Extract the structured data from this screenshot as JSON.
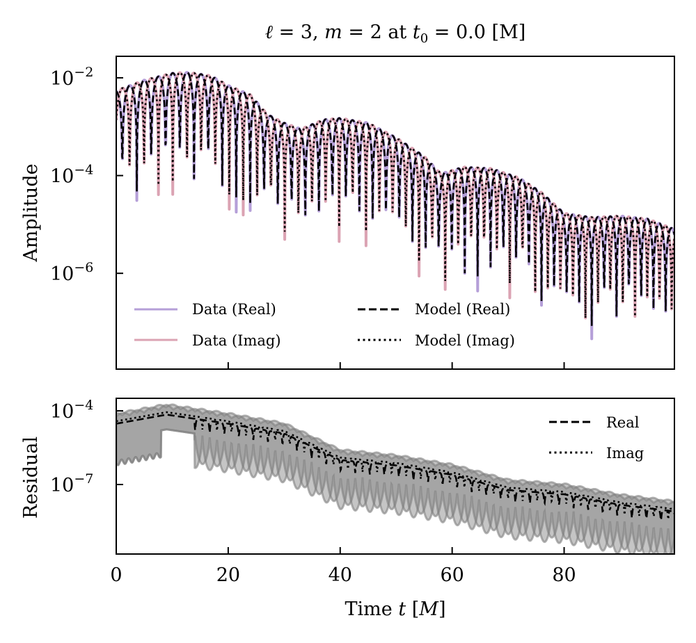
{
  "chart_data": [
    {
      "panel": "top",
      "type": "line",
      "title": "ℓ = 3, m = 2 at t₀ = 0.0 [M]",
      "title_parts": {
        "l": "3",
        "m": "2",
        "t0": "0.0",
        "unit": "[M]"
      },
      "xlabel": "",
      "ylabel": "Amplitude",
      "yscale": "log",
      "xlim": [
        0,
        99.7
      ],
      "ylim_log10": [
        -7.96,
        -1.56
      ],
      "yticks": [
        {
          "exp": "−2",
          "value": 0.01
        },
        {
          "exp": "−4",
          "value": 0.0001
        },
        {
          "exp": "−6",
          "value": 1e-06
        }
      ],
      "xticks": [
        0,
        20,
        40,
        60,
        80
      ],
      "xticklabels_visible": false,
      "legend": {
        "placement": "lower-left",
        "columns": 2,
        "entries": [
          {
            "label": "Data (Real)",
            "style": "solid",
            "color": "#b59fd8"
          },
          {
            "label": "Data (Imag)",
            "style": "solid",
            "color": "#dba3b3"
          },
          {
            "label": "Model (Real)",
            "style": "dashed",
            "color": "#000000"
          },
          {
            "label": "Model (Imag)",
            "style": "dotted",
            "color": "#000000"
          }
        ]
      },
      "series_description": "|Re h| and |Im h| of an oscillating ringdown signal; envelope ~1e-2 peaking near t≈13, shoulder near t≈22-30 at ~1e-3, second hump ~1.5e-3 near t≈38, decaying to ~1.5e-4 at t≈60 and ~1.5e-5 at t≈90; deep zero-crossing notches every ~2.6 M",
      "envelope_points": [
        {
          "t": 0,
          "amp": 0.0055
        },
        {
          "t": 5,
          "amp": 0.009
        },
        {
          "t": 10,
          "amp": 0.0125
        },
        {
          "t": 13,
          "amp": 0.013
        },
        {
          "t": 17,
          "amp": 0.011
        },
        {
          "t": 20,
          "amp": 0.007
        },
        {
          "t": 24,
          "amp": 0.0045
        },
        {
          "t": 27,
          "amp": 0.0018
        },
        {
          "t": 30,
          "amp": 0.0012
        },
        {
          "t": 33,
          "amp": 0.0009
        },
        {
          "t": 37,
          "amp": 0.0014
        },
        {
          "t": 40,
          "amp": 0.0015
        },
        {
          "t": 45,
          "amp": 0.0012
        },
        {
          "t": 50,
          "amp": 0.0006
        },
        {
          "t": 55,
          "amp": 0.00025
        },
        {
          "t": 58,
          "amp": 0.00011
        },
        {
          "t": 62,
          "amp": 0.00015
        },
        {
          "t": 67,
          "amp": 0.00014
        },
        {
          "t": 72,
          "amp": 9e-05
        },
        {
          "t": 76,
          "amp": 4.5e-05
        },
        {
          "t": 80,
          "amp": 1.7e-05
        },
        {
          "t": 85,
          "amp": 1.4e-05
        },
        {
          "t": 90,
          "amp": 1.5e-05
        },
        {
          "t": 95,
          "amp": 1.3e-05
        },
        {
          "t": 99.7,
          "amp": 8e-06
        }
      ],
      "series": [
        {
          "name": "Data (Real)",
          "color": "#b59fd8",
          "style": "solid"
        },
        {
          "name": "Data (Imag)",
          "color": "#dba3b3",
          "style": "solid"
        },
        {
          "name": "Model (Real)",
          "color": "#000000",
          "style": "dashed"
        },
        {
          "name": "Model (Imag)",
          "color": "#000000",
          "style": "dotted"
        }
      ]
    },
    {
      "panel": "bottom",
      "type": "area",
      "xlabel": "Time t [M]",
      "ylabel": "Residual",
      "yscale": "log",
      "xlim": [
        0,
        99.7
      ],
      "ylim_log10": [
        -9.83,
        -3.49
      ],
      "yticks": [
        {
          "exp": "−4",
          "value": 0.0001
        },
        {
          "exp": "−7",
          "value": 1e-07
        }
      ],
      "xticks": [
        0,
        20,
        40,
        60,
        80
      ],
      "xticklabels": [
        "0",
        "20",
        "40",
        "60",
        "80"
      ],
      "legend": {
        "placement": "upper-right",
        "entries": [
          {
            "label": "Real",
            "style": "dashed",
            "color": "#000000"
          },
          {
            "label": "Imag",
            "style": "dotted",
            "color": "#000000"
          }
        ]
      },
      "band_color": "#7f7f7f",
      "series_description": "Residual |data − model| with grey uncertainty bands; median dashed (Real) and dotted (Imag) lines decreasing from ~3e-5 at t=0 to ~5e-9 at t=100",
      "median_points": [
        {
          "t": 0,
          "res": 3e-05
        },
        {
          "t": 9,
          "res": 7e-05
        },
        {
          "t": 20,
          "res": 3e-05
        },
        {
          "t": 30,
          "res": 1.2e-05
        },
        {
          "t": 40,
          "res": 1e-06
        },
        {
          "t": 50,
          "res": 6e-07
        },
        {
          "t": 60,
          "res": 2.5e-07
        },
        {
          "t": 70,
          "res": 6e-08
        },
        {
          "t": 80,
          "res": 4e-08
        },
        {
          "t": 90,
          "res": 1.5e-08
        },
        {
          "t": 99.7,
          "res": 8e-09
        }
      ],
      "series": [
        {
          "name": "Real",
          "color": "#000000",
          "style": "dashed"
        },
        {
          "name": "Imag",
          "color": "#000000",
          "style": "dotted"
        }
      ]
    }
  ]
}
